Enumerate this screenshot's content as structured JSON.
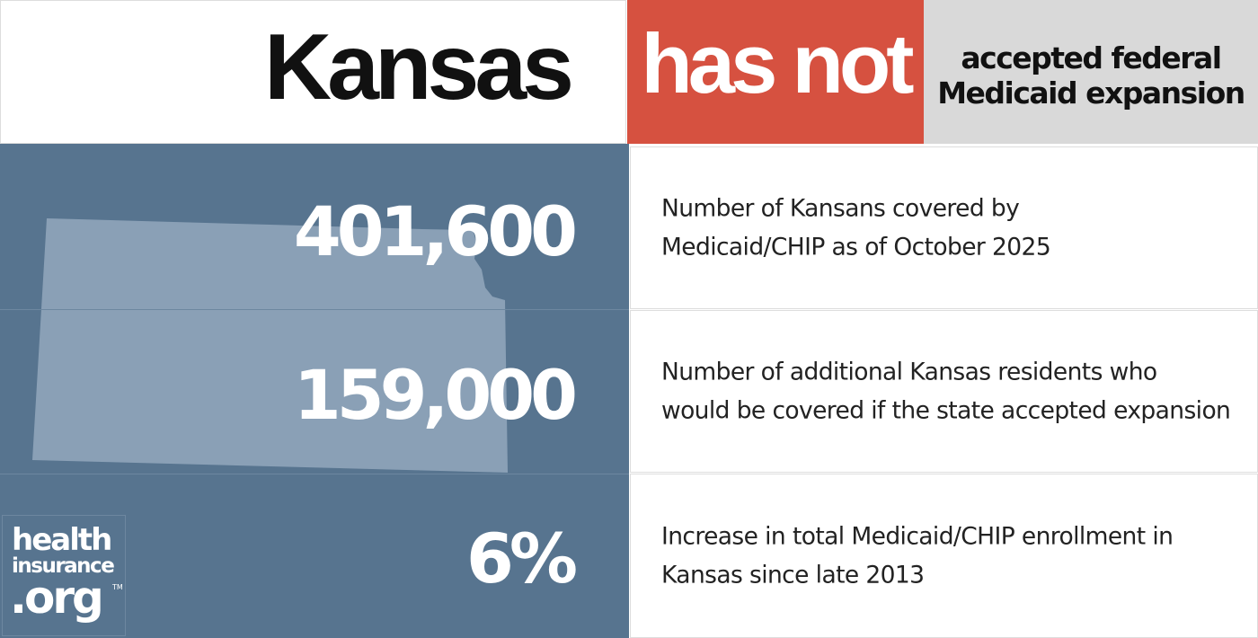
{
  "header": {
    "state": "Kansas",
    "status": "has not",
    "status_desc_line1": "accepted federal",
    "status_desc_line2": "Medicaid expansion"
  },
  "stats": [
    {
      "value": "401,600",
      "line1": "Number of Kansans covered by",
      "line2": "Medicaid/CHIP as of October 2025"
    },
    {
      "value": "159,000",
      "line1": "Number of additional Kansas residents who",
      "line2": "would be covered if the state accepted expansion"
    },
    {
      "value": "6%",
      "line1": "Increase in total Medicaid/CHIP enrollment in",
      "line2": "Kansas since late 2013"
    }
  ],
  "logo": {
    "line1": "health",
    "line2": "insurance",
    "line3": ".org",
    "tm": "TM"
  },
  "colors": {
    "status_red": "#d65140",
    "panel_blue": "#57748f",
    "state_shape": "#8aa0b6",
    "desc_gray": "#d9d9d9"
  },
  "icons": {
    "state_shape": "kansas-map-silhouette"
  }
}
